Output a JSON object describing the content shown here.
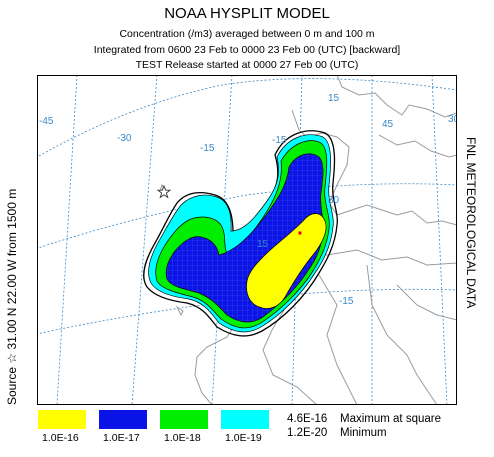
{
  "header": {
    "title": "NOAA HYSPLIT MODEL",
    "line1": "Concentration  (/m3) averaged between      0 m and   100 m",
    "line2": "Integrated from 0600 23 Feb to 0000 23 Feb 00 (UTC) [backward]",
    "line3": "TEST Release started at 0000 27 Feb 00 (UTC)"
  },
  "side": {
    "left": "Source ☆  31.00 N   22.00 W   from  1500 m",
    "right": "FNL  METEOROLOGICAL DATA"
  },
  "map": {
    "grid_labels": [
      "-45",
      "-30",
      "-15",
      "-15",
      "15",
      "30",
      "30",
      "45",
      "15",
      "-15"
    ],
    "colors": {
      "land_line": "#9b9b9b",
      "grid": "#3a88c8",
      "outline": "#000000",
      "c1": "#ffff00",
      "c2": "#0a14e6",
      "c3": "#00ee00",
      "c4": "#00ffff",
      "source": "#e4000f"
    }
  },
  "legend": {
    "items": [
      {
        "label": "1.0E-16",
        "color": "#ffff00"
      },
      {
        "label": "1.0E-17",
        "color": "#0a14e6"
      },
      {
        "label": "1.0E-18",
        "color": "#00ee00"
      },
      {
        "label": "1.0E-19",
        "color": "#00ffff"
      }
    ],
    "max_value": "4.6E-16",
    "max_label": "Maximum at square",
    "min_value": "1.2E-20",
    "min_label": "Minimum"
  }
}
